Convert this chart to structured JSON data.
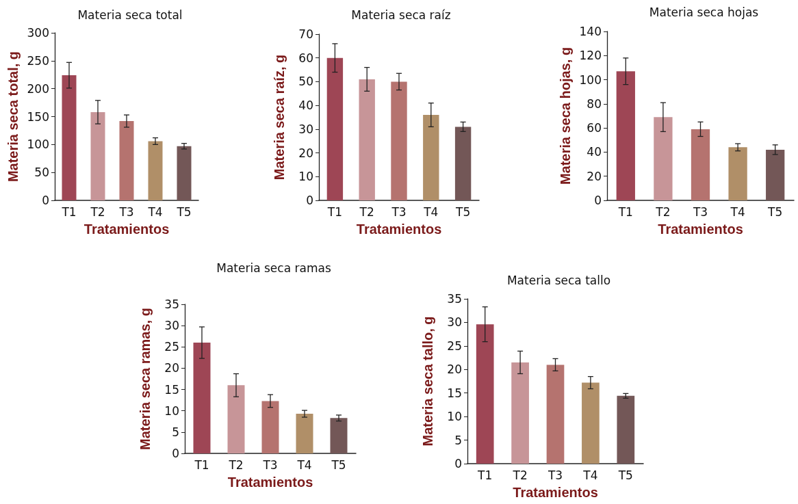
{
  "chart_data": [
    {
      "type": "bar",
      "title": "Materia seca total",
      "xlabel": "Tratamientos",
      "ylabel": "Materia seca total, g",
      "categories": [
        "T1",
        "T2",
        "T3",
        "T4",
        "T5"
      ],
      "values": [
        224,
        158,
        142,
        106,
        97
      ],
      "errors": [
        23,
        21,
        11,
        6,
        5
      ],
      "colors": [
        "#9e4655",
        "#c79598",
        "#b5736f",
        "#b08f68",
        "#735757"
      ],
      "ylim": [
        0,
        300
      ],
      "yticks": [
        0,
        50,
        100,
        150,
        200,
        250,
        300
      ],
      "grid": false
    },
    {
      "type": "bar",
      "title": "Materia seca raíz",
      "xlabel": "Tratamientos",
      "ylabel": "Materia seca raíz, g",
      "categories": [
        "T1",
        "T2",
        "T3",
        "T4",
        "T5"
      ],
      "values": [
        60,
        51,
        50,
        36,
        31
      ],
      "errors": [
        6,
        5,
        3.5,
        5,
        2
      ],
      "colors": [
        "#9e4655",
        "#c79598",
        "#b5736f",
        "#b08f68",
        "#735757"
      ],
      "ylim": [
        0,
        70
      ],
      "yticks": [
        0,
        10,
        20,
        30,
        40,
        50,
        60,
        70
      ],
      "grid": false
    },
    {
      "type": "bar",
      "title": "Materia seca hojas",
      "xlabel": "Tratamientos",
      "ylabel": "Materia seca hojas, g",
      "categories": [
        "T1",
        "T2",
        "T3",
        "T4",
        "T5"
      ],
      "values": [
        107,
        69,
        59,
        44,
        42
      ],
      "errors": [
        11,
        12,
        6,
        3,
        4
      ],
      "colors": [
        "#9e4655",
        "#c79598",
        "#b5736f",
        "#b08f68",
        "#735757"
      ],
      "ylim": [
        0,
        140
      ],
      "yticks": [
        0,
        20,
        40,
        60,
        80,
        100,
        120,
        140
      ],
      "grid": false
    },
    {
      "type": "bar",
      "title": "Materia seca ramas",
      "xlabel": "Tratamientos",
      "ylabel": "Materia seca ramas, g",
      "categories": [
        "T1",
        "T2",
        "T3",
        "T4",
        "T5"
      ],
      "values": [
        26,
        16,
        12.3,
        9.3,
        8.3
      ],
      "errors": [
        3.7,
        2.7,
        1.5,
        0.8,
        0.7
      ],
      "colors": [
        "#9e4655",
        "#c79598",
        "#b5736f",
        "#b08f68",
        "#735757"
      ],
      "ylim": [
        0,
        35
      ],
      "yticks": [
        0,
        5,
        10,
        15,
        20,
        25,
        30,
        35
      ],
      "grid": false
    },
    {
      "type": "bar",
      "title": "Materia seca tallo",
      "xlabel": "Tratamientos",
      "ylabel": "Materia seca tallo, g",
      "categories": [
        "T1",
        "T2",
        "T3",
        "T4",
        "T5"
      ],
      "values": [
        29.6,
        21.5,
        21,
        17.2,
        14.4
      ],
      "errors": [
        3.7,
        2.4,
        1.3,
        1.3,
        0.5
      ],
      "colors": [
        "#9e4655",
        "#c79598",
        "#b5736f",
        "#b08f68",
        "#735757"
      ],
      "ylim": [
        0,
        35
      ],
      "yticks": [
        0,
        5,
        10,
        15,
        20,
        25,
        30,
        35
      ],
      "grid": false
    }
  ]
}
